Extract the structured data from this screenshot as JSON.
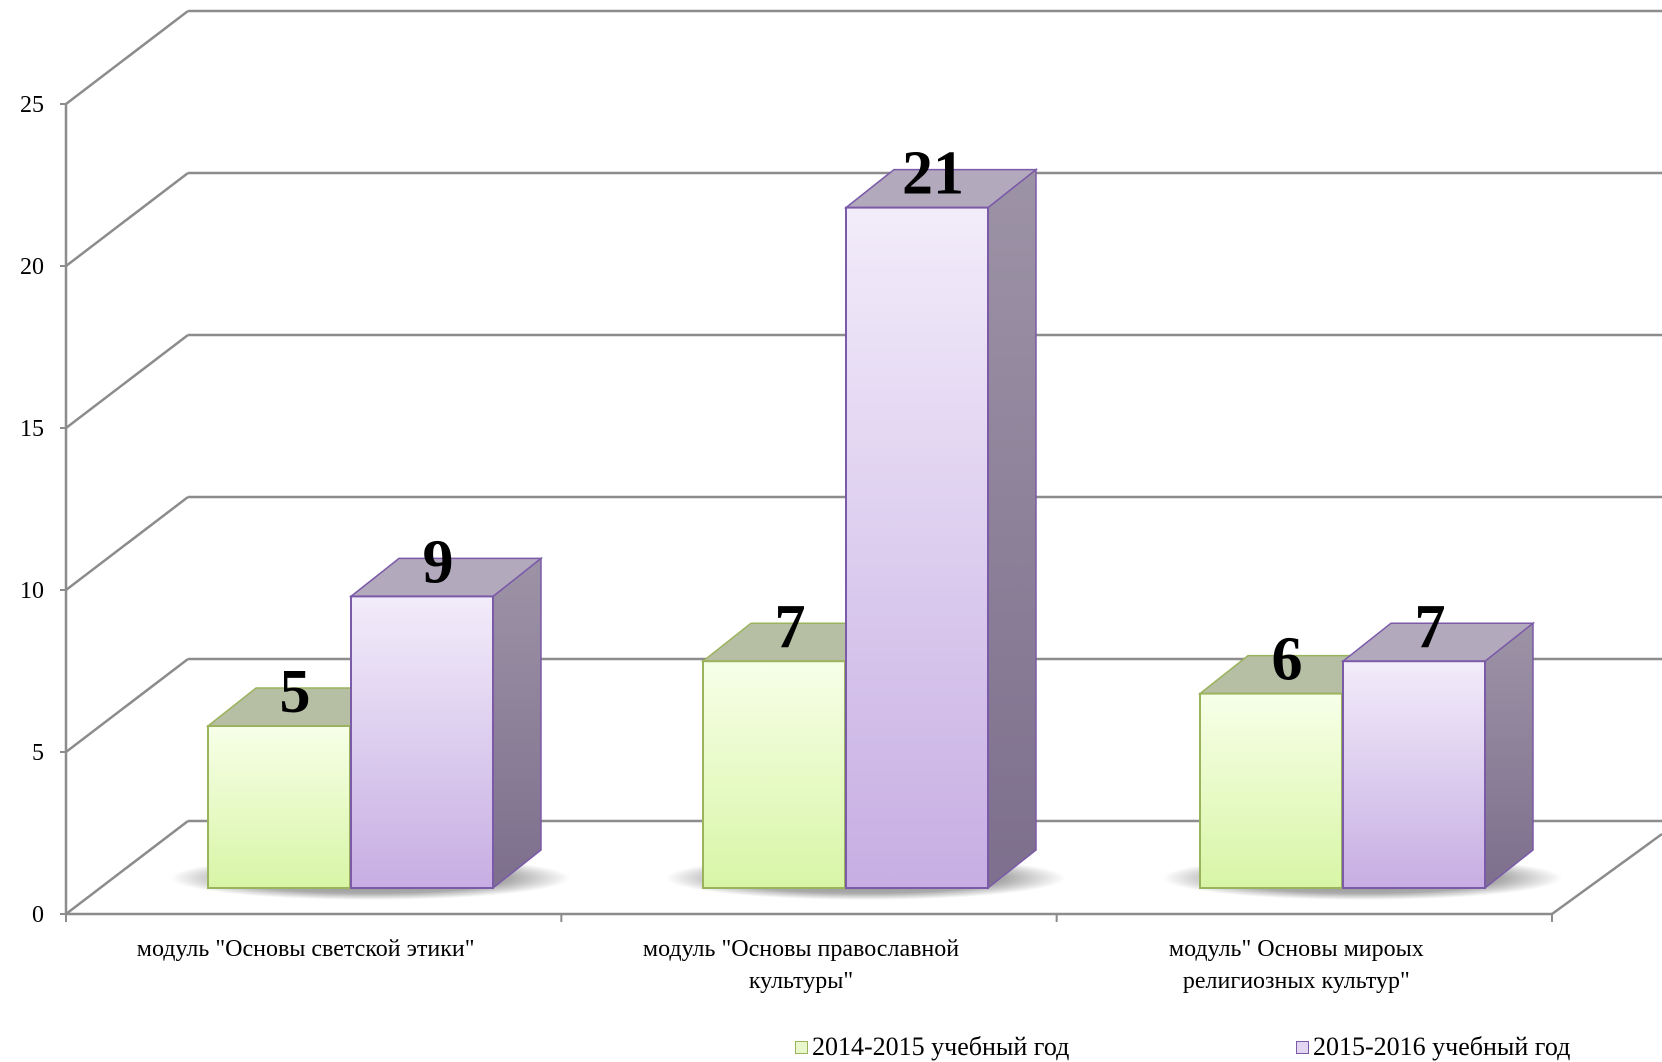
{
  "chart_data": {
    "type": "bar",
    "style": "3d-clustered-column",
    "categories": [
      [
        "модуль \"Основы светской этики\""
      ],
      [
        "модуль \"Основы православной",
        "культуры\""
      ],
      [
        "модуль\" Основы мироых",
        "религиозных культур\""
      ]
    ],
    "series": [
      {
        "name": "2014-2015 учебный год",
        "values": [
          5,
          7,
          6
        ]
      },
      {
        "name": "2015-2016 учебный год",
        "values": [
          9,
          21,
          7
        ]
      }
    ],
    "yticks": [
      "0",
      "5",
      "10",
      "15",
      "20",
      "25"
    ],
    "ylim": [
      0,
      25
    ],
    "grid": true,
    "legend_position": "bottom",
    "colors": {
      "series1_top": "#f7ffe8",
      "series1_bottom": "#d8f5a6",
      "series1_border": "#9bb35d",
      "series2_top": "#f2ecfa",
      "series2_bottom": "#c7aee3",
      "series2_border": "#7b5aa8",
      "side": "#8e8299",
      "cap1": "#b6bea3",
      "cap2": "#b3a9bd",
      "grid": "#8c8c8c"
    }
  }
}
